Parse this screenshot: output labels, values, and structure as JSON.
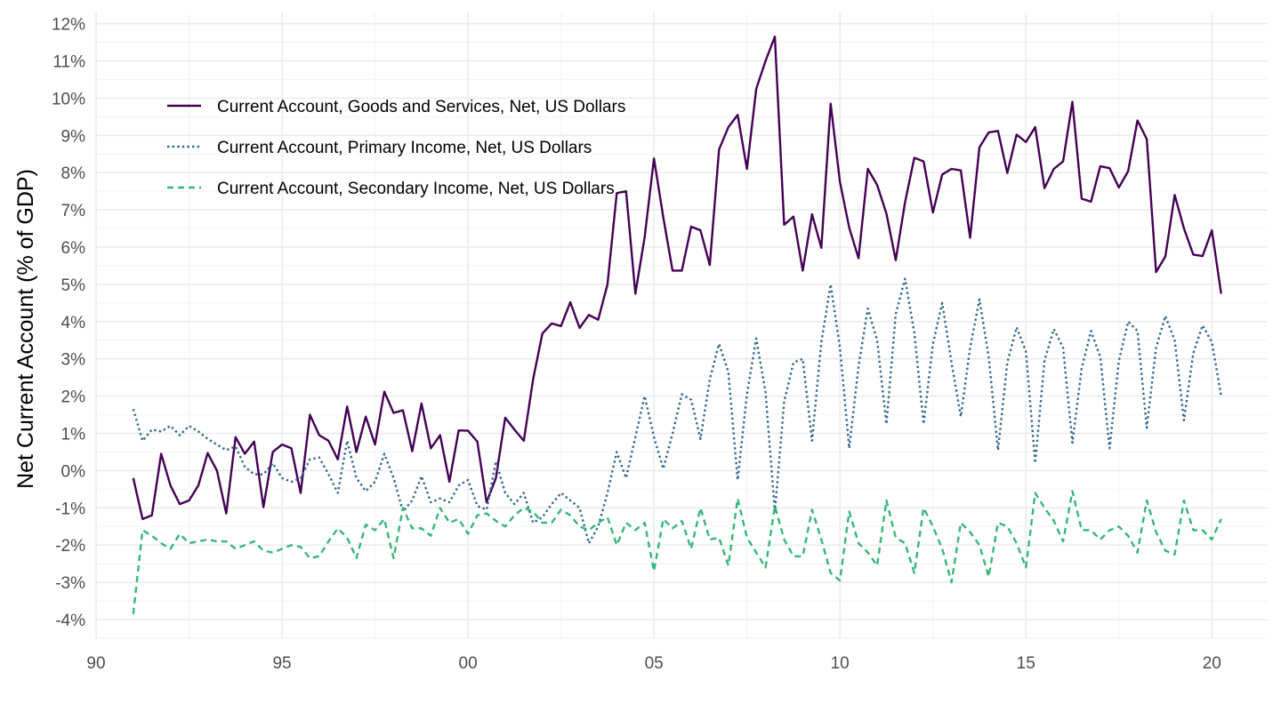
{
  "chart_data": {
    "type": "line",
    "title": "",
    "xlabel": "",
    "ylabel": "Net Current Account (% of GDP)",
    "x_unit": "year",
    "xlim": [
      1990,
      2021.5
    ],
    "ylim": [
      -4.5,
      12.3
    ],
    "x_ticks": [
      {
        "value": 1990,
        "label": "90"
      },
      {
        "value": 1995,
        "label": "95"
      },
      {
        "value": 2000,
        "label": "00"
      },
      {
        "value": 2005,
        "label": "05"
      },
      {
        "value": 2010,
        "label": "10"
      },
      {
        "value": 2015,
        "label": "15"
      },
      {
        "value": 2020,
        "label": "20"
      }
    ],
    "y_ticks": [
      {
        "value": -4,
        "label": "-4%"
      },
      {
        "value": -3,
        "label": "-3%"
      },
      {
        "value": -2,
        "label": "-2%"
      },
      {
        "value": -1,
        "label": "-1%"
      },
      {
        "value": 0,
        "label": "0%"
      },
      {
        "value": 1,
        "label": "1%"
      },
      {
        "value": 2,
        "label": "2%"
      },
      {
        "value": 3,
        "label": "3%"
      },
      {
        "value": 4,
        "label": "4%"
      },
      {
        "value": 5,
        "label": "5%"
      },
      {
        "value": 6,
        "label": "6%"
      },
      {
        "value": 7,
        "label": "7%"
      },
      {
        "value": 8,
        "label": "8%"
      },
      {
        "value": 9,
        "label": "9%"
      },
      {
        "value": 10,
        "label": "10%"
      },
      {
        "value": 11,
        "label": "11%"
      },
      {
        "value": 12,
        "label": "12%"
      }
    ],
    "grid": true,
    "legend_position": "top-left",
    "x_start": 1991.0,
    "x_step": 0.25,
    "series": [
      {
        "name": "Current Account, Goods and Services, Net, US Dollars",
        "color": "#440154",
        "dash": "solid",
        "values": [
          -0.2,
          -1.3,
          -1.2,
          0.45,
          -0.4,
          -0.9,
          -0.8,
          -0.4,
          0.47,
          0.0,
          -1.15,
          0.9,
          0.45,
          0.78,
          -0.98,
          0.5,
          0.7,
          0.6,
          -0.6,
          1.5,
          0.95,
          0.8,
          0.3,
          1.72,
          0.5,
          1.45,
          0.7,
          2.12,
          1.55,
          1.62,
          0.52,
          1.8,
          0.6,
          0.95,
          -0.3,
          1.08,
          1.07,
          0.78,
          -0.85,
          -0.2,
          1.42,
          1.1,
          0.8,
          2.45,
          3.68,
          3.95,
          3.88,
          4.52,
          3.83,
          4.18,
          4.05,
          5.0,
          7.45,
          7.5,
          4.75,
          6.27,
          8.38,
          6.8,
          5.37,
          5.37,
          6.55,
          6.45,
          5.52,
          8.62,
          9.22,
          9.55,
          8.1,
          10.25,
          11.0,
          11.65,
          6.6,
          6.82,
          5.37,
          6.88,
          5.98,
          9.85,
          7.75,
          6.52,
          5.7,
          8.1,
          7.67,
          6.9,
          5.65,
          7.2,
          8.4,
          8.3,
          6.93,
          7.95,
          8.1,
          8.06,
          6.25,
          8.68,
          9.08,
          9.12,
          7.99,
          9.02,
          8.82,
          9.22,
          7.58,
          8.1,
          8.3,
          9.9,
          7.3,
          7.22,
          8.17,
          8.12,
          7.6,
          8.04,
          9.4,
          8.9,
          5.33,
          5.75,
          7.4,
          6.5,
          5.8,
          5.76,
          6.45,
          4.75
        ]
      },
      {
        "name": "Current Account, Primary Income, Net, US Dollars",
        "color": "#31688e",
        "dash": "dotted",
        "values": [
          1.65,
          0.8,
          1.1,
          1.05,
          1.2,
          0.95,
          1.2,
          1.05,
          0.85,
          0.7,
          0.55,
          0.65,
          0.1,
          -0.1,
          -0.1,
          0.2,
          -0.2,
          -0.3,
          -0.2,
          0.3,
          0.35,
          -0.1,
          -0.6,
          0.8,
          -0.2,
          -0.55,
          -0.3,
          0.45,
          -0.2,
          -1.1,
          -0.8,
          -0.15,
          -0.85,
          -0.75,
          -0.85,
          -0.4,
          -0.25,
          -0.95,
          -1.05,
          0.25,
          -0.6,
          -0.9,
          -0.6,
          -1.4,
          -1.25,
          -0.9,
          -0.6,
          -0.8,
          -1.0,
          -1.95,
          -1.5,
          -0.6,
          0.5,
          -0.2,
          0.9,
          2.0,
          0.9,
          0.05,
          1.0,
          2.05,
          1.9,
          0.85,
          2.45,
          3.4,
          2.65,
          -0.25,
          2.05,
          3.55,
          2.1,
          -1.1,
          1.85,
          2.9,
          3.0,
          0.8,
          3.45,
          5.0,
          3.3,
          0.6,
          2.8,
          4.35,
          3.5,
          1.25,
          4.2,
          5.15,
          3.7,
          1.25,
          3.4,
          4.5,
          2.9,
          1.45,
          3.3,
          4.6,
          3.05,
          0.55,
          2.9,
          3.85,
          3.2,
          0.2,
          2.95,
          3.8,
          3.3,
          0.75,
          2.75,
          3.75,
          3.05,
          0.6,
          2.95,
          4.0,
          3.75,
          1.15,
          3.3,
          4.15,
          3.5,
          1.35,
          3.15,
          3.9,
          3.45,
          2.0
        ]
      },
      {
        "name": "Current Account, Secondary Income, Net, US Dollars",
        "color": "#35b779",
        "dash": "dashed",
        "values": [
          -3.85,
          -1.6,
          -1.75,
          -1.95,
          -2.1,
          -1.7,
          -1.95,
          -1.9,
          -1.85,
          -1.9,
          -1.9,
          -2.1,
          -2.0,
          -1.9,
          -2.15,
          -2.2,
          -2.1,
          -2.0,
          -2.05,
          -2.35,
          -2.3,
          -1.9,
          -1.55,
          -1.8,
          -2.35,
          -1.45,
          -1.6,
          -1.3,
          -2.35,
          -1.0,
          -1.55,
          -1.55,
          -1.75,
          -1.0,
          -1.4,
          -1.3,
          -1.7,
          -1.2,
          -1.15,
          -1.35,
          -1.5,
          -1.2,
          -1.0,
          -1.1,
          -1.4,
          -1.4,
          -1.05,
          -1.2,
          -1.5,
          -1.6,
          -1.4,
          -1.25,
          -2.0,
          -1.4,
          -1.6,
          -1.4,
          -2.7,
          -1.3,
          -1.55,
          -1.35,
          -2.1,
          -1.0,
          -1.85,
          -1.8,
          -2.55,
          -0.75,
          -1.8,
          -2.2,
          -2.6,
          -0.95,
          -1.85,
          -2.3,
          -2.3,
          -1.05,
          -1.85,
          -2.75,
          -2.95,
          -1.1,
          -1.95,
          -2.2,
          -2.55,
          -0.8,
          -1.8,
          -1.95,
          -2.75,
          -1.0,
          -1.5,
          -2.1,
          -3.0,
          -1.4,
          -1.65,
          -2.0,
          -2.85,
          -1.4,
          -1.5,
          -1.95,
          -2.6,
          -0.6,
          -1.0,
          -1.35,
          -1.9,
          -0.55,
          -1.6,
          -1.6,
          -1.85,
          -1.6,
          -1.5,
          -1.75,
          -2.2,
          -0.8,
          -1.65,
          -2.15,
          -2.25,
          -0.8,
          -1.6,
          -1.6,
          -1.85,
          -1.3
        ]
      }
    ]
  }
}
